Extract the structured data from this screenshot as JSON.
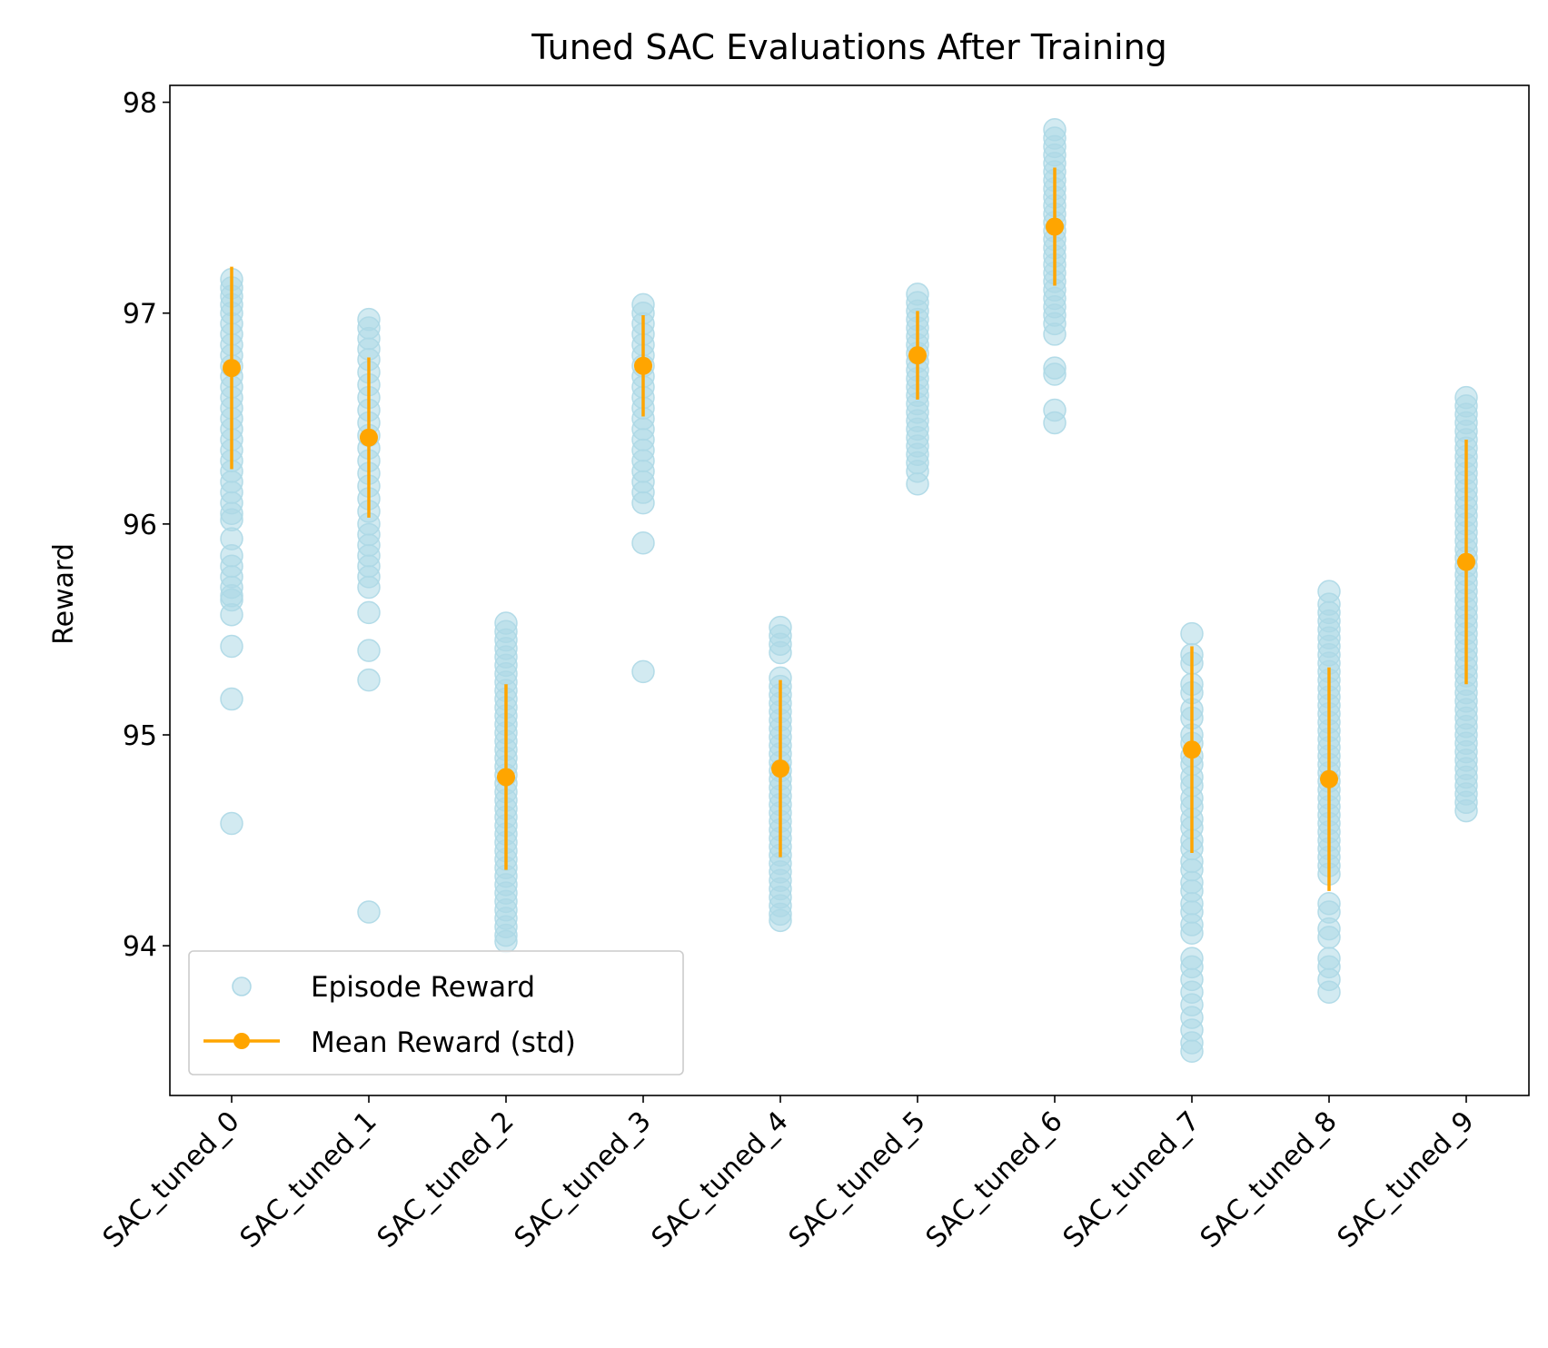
{
  "chart_data": {
    "type": "scatter",
    "title": "Tuned SAC Evaluations After Training",
    "xlabel": "",
    "ylabel": "Reward",
    "ylim": [
      93.29,
      98.08
    ],
    "yticks": [
      94,
      95,
      96,
      97,
      98
    ],
    "grid": false,
    "legend_position": "lower-left",
    "categories": [
      "SAC_tuned_0",
      "SAC_tuned_1",
      "SAC_tuned_2",
      "SAC_tuned_3",
      "SAC_tuned_4",
      "SAC_tuned_5",
      "SAC_tuned_6",
      "SAC_tuned_7",
      "SAC_tuned_8",
      "SAC_tuned_9"
    ],
    "series": [
      {
        "name": "Episode Reward",
        "kind": "scatter",
        "color": "#add8e6",
        "values": [
          [
            97.16,
            97.12,
            97.08,
            97.04,
            97.0,
            96.95,
            96.9,
            96.85,
            96.8,
            96.75,
            96.7,
            96.65,
            96.6,
            96.55,
            96.5,
            96.45,
            96.4,
            96.35,
            96.3,
            96.25,
            96.2,
            96.15,
            96.1,
            96.05,
            96.02,
            95.93,
            95.85,
            95.8,
            95.75,
            95.7,
            95.66,
            95.64,
            95.57,
            95.42,
            95.17,
            94.58
          ],
          [
            96.97,
            96.93,
            96.88,
            96.83,
            96.78,
            96.72,
            96.66,
            96.6,
            96.54,
            96.48,
            96.42,
            96.36,
            96.3,
            96.24,
            96.18,
            96.12,
            96.06,
            96.0,
            95.95,
            95.9,
            95.85,
            95.8,
            95.75,
            95.7,
            95.58,
            95.4,
            95.26,
            94.16
          ],
          [
            95.53,
            95.49,
            95.45,
            95.41,
            95.37,
            95.33,
            95.29,
            95.25,
            95.21,
            95.17,
            95.13,
            95.09,
            95.05,
            95.01,
            94.97,
            94.93,
            94.89,
            94.85,
            94.81,
            94.77,
            94.73,
            94.69,
            94.65,
            94.61,
            94.57,
            94.53,
            94.49,
            94.45,
            94.41,
            94.37,
            94.33,
            94.29,
            94.25,
            94.21,
            94.17,
            94.13,
            94.09,
            94.05,
            94.02
          ],
          [
            97.04,
            97.0,
            96.95,
            96.9,
            96.85,
            96.8,
            96.75,
            96.7,
            96.65,
            96.6,
            96.55,
            96.5,
            96.45,
            96.4,
            96.35,
            96.3,
            96.25,
            96.2,
            96.15,
            96.1,
            95.91,
            95.3
          ],
          [
            95.51,
            95.47,
            95.43,
            95.39,
            95.27,
            95.23,
            95.19,
            95.15,
            95.11,
            95.07,
            95.03,
            94.99,
            94.95,
            94.91,
            94.87,
            94.83,
            94.79,
            94.75,
            94.71,
            94.67,
            94.63,
            94.59,
            94.55,
            94.51,
            94.47,
            94.43,
            94.39,
            94.35,
            94.31,
            94.27,
            94.23,
            94.19,
            94.15,
            94.12
          ],
          [
            97.09,
            97.05,
            97.01,
            96.97,
            96.93,
            96.89,
            96.85,
            96.81,
            96.77,
            96.73,
            96.69,
            96.65,
            96.61,
            96.57,
            96.53,
            96.49,
            96.45,
            96.41,
            96.37,
            96.33,
            96.29,
            96.25,
            96.19
          ],
          [
            97.87,
            97.83,
            97.79,
            97.75,
            97.71,
            97.67,
            97.63,
            97.59,
            97.55,
            97.51,
            97.47,
            97.43,
            97.39,
            97.35,
            97.31,
            97.27,
            97.23,
            97.19,
            97.15,
            97.11,
            97.07,
            97.03,
            96.99,
            96.95,
            96.9,
            96.74,
            96.71,
            96.54,
            96.48
          ],
          [
            95.48,
            95.38,
            95.34,
            95.24,
            95.2,
            95.12,
            95.08,
            95.0,
            94.96,
            94.9,
            94.86,
            94.8,
            94.76,
            94.7,
            94.66,
            94.6,
            94.56,
            94.5,
            94.46,
            94.4,
            94.36,
            94.3,
            94.26,
            94.2,
            94.16,
            94.1,
            94.06,
            93.94,
            93.9,
            93.84,
            93.78,
            93.72,
            93.66,
            93.6,
            93.54,
            93.5
          ],
          [
            95.68,
            95.62,
            95.58,
            95.54,
            95.5,
            95.46,
            95.42,
            95.38,
            95.34,
            95.3,
            95.26,
            95.22,
            95.18,
            95.14,
            95.1,
            95.06,
            95.02,
            94.98,
            94.94,
            94.9,
            94.86,
            94.82,
            94.78,
            94.74,
            94.7,
            94.66,
            94.62,
            94.58,
            94.54,
            94.5,
            94.46,
            94.42,
            94.38,
            94.34,
            94.2,
            94.16,
            94.08,
            94.04,
            93.94,
            93.9,
            93.84,
            93.78
          ],
          [
            96.6,
            96.56,
            96.52,
            96.48,
            96.44,
            96.4,
            96.36,
            96.32,
            96.28,
            96.24,
            96.2,
            96.16,
            96.12,
            96.08,
            96.04,
            96.0,
            95.96,
            95.92,
            95.88,
            95.84,
            95.8,
            95.76,
            95.72,
            95.68,
            95.64,
            95.6,
            95.56,
            95.52,
            95.48,
            95.44,
            95.4,
            95.36,
            95.32,
            95.28,
            95.24,
            95.2,
            95.16,
            95.12,
            95.08,
            95.04,
            95.0,
            94.96,
            94.92,
            94.88,
            94.84,
            94.8,
            94.76,
            94.72,
            94.68,
            94.64
          ]
        ]
      },
      {
        "name": "Mean Reward (std)",
        "kind": "errorbar",
        "color": "#ffa500",
        "mean": [
          96.74,
          96.41,
          94.8,
          96.75,
          94.84,
          96.8,
          97.41,
          94.93,
          94.79,
          95.82
        ],
        "std": [
          0.48,
          0.38,
          0.44,
          0.24,
          0.42,
          0.21,
          0.28,
          0.49,
          0.53,
          0.58
        ]
      }
    ]
  }
}
